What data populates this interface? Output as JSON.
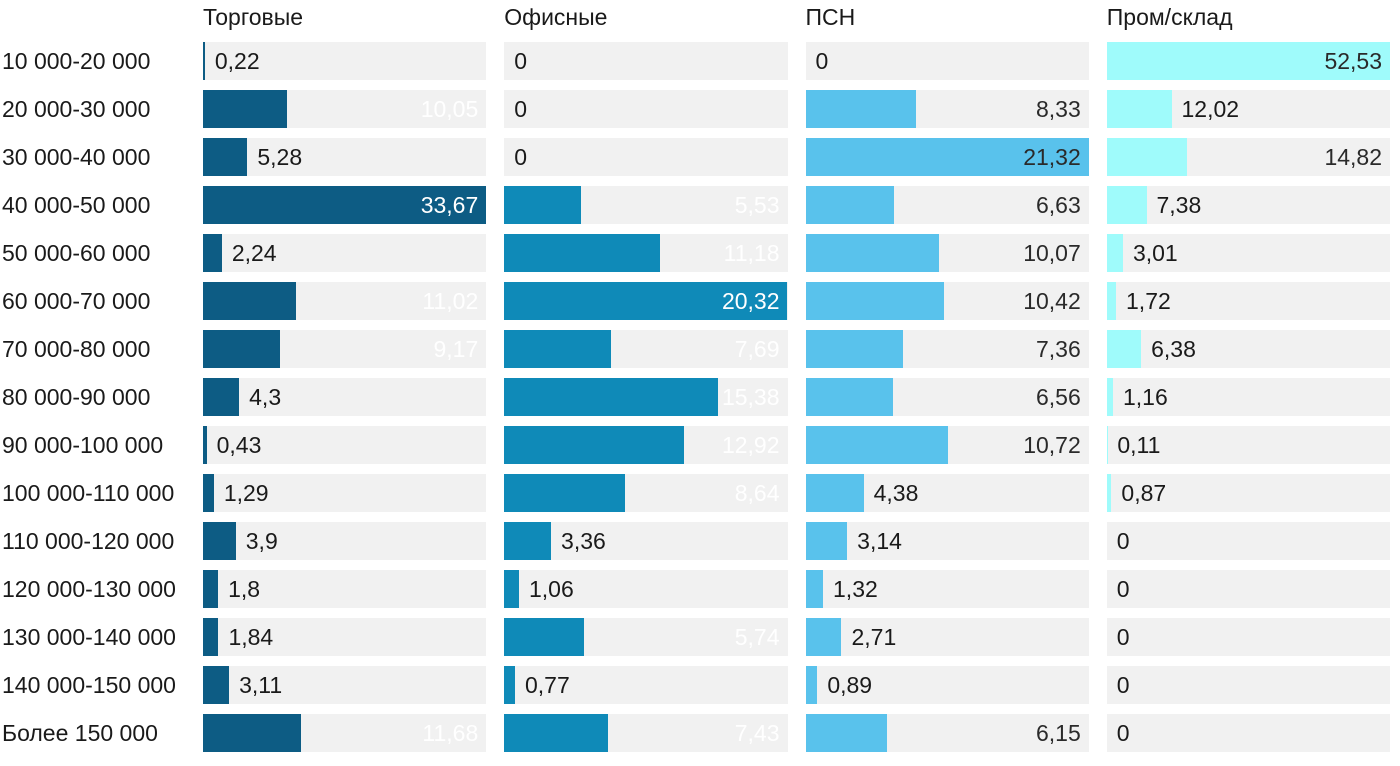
{
  "chart_data": {
    "type": "bar",
    "orientation": "horizontal",
    "title": "",
    "xlabel": "",
    "ylabel": "",
    "categories": [
      "10 000-20 000",
      "20 000-30 000",
      "30 000-40 000",
      "40 000-50 000",
      "50 000-60 000",
      "60 000-70 000",
      "70 000-80 000",
      "80 000-90 000",
      "90 000-100 000",
      "100 000-110 000",
      "110 000-120 000",
      "120 000-130 000",
      "130 000-140 000",
      "140 000-150 000",
      "Более 150 000"
    ],
    "series": [
      {
        "name": "Торговые",
        "color": "#0d5c84",
        "inside_label_color": "#ffffff",
        "values": [
          0.22,
          10.05,
          5.28,
          33.67,
          2.24,
          11.02,
          9.17,
          4.3,
          0.43,
          1.29,
          3.9,
          1.8,
          1.84,
          3.11,
          11.68
        ],
        "labels": [
          "0,22",
          "10,05",
          "5,28",
          "33,67",
          "2,24",
          "11,02",
          "9,17",
          "4,3",
          "0,43",
          "1,29",
          "3,9",
          "1,8",
          "1,84",
          "3,11",
          "11,68"
        ]
      },
      {
        "name": "Офисные",
        "color": "#0f8ab8",
        "inside_label_color": "#ffffff",
        "values": [
          0,
          0,
          0,
          5.53,
          11.18,
          20.32,
          7.69,
          15.38,
          12.92,
          8.64,
          3.36,
          1.06,
          5.74,
          0.77,
          7.43
        ],
        "labels": [
          "0",
          "0",
          "0",
          "5,53",
          "11,18",
          "20,32",
          "7,69",
          "15,38",
          "12,92",
          "8,64",
          "3,36",
          "1,06",
          "5,74",
          "0,77",
          "7,43"
        ]
      },
      {
        "name": "ПСН",
        "color": "#59c2ec",
        "inside_label_color": "#2a2a2a",
        "values": [
          0,
          8.33,
          21.32,
          6.63,
          10.07,
          10.42,
          7.36,
          6.56,
          10.72,
          4.38,
          3.14,
          1.32,
          2.71,
          0.89,
          6.15
        ],
        "labels": [
          "0",
          "8,33",
          "21,32",
          "6,63",
          "10,07",
          "10,42",
          "7,36",
          "6,56",
          "10,72",
          "4,38",
          "3,14",
          "1,32",
          "2,71",
          "0,89",
          "6,15"
        ]
      },
      {
        "name": "Пром/склад",
        "color": "#9ffbfb",
        "inside_label_color": "#2a2a2a",
        "values": [
          52.53,
          12.02,
          14.82,
          7.38,
          3.01,
          1.72,
          6.38,
          1.16,
          0.11,
          0.87,
          0,
          0,
          0,
          0,
          0
        ],
        "labels": [
          "52,53",
          "12,02",
          "14,82",
          "7,38",
          "3,01",
          "1,72",
          "6,38",
          "1,16",
          "0,11",
          "0,87",
          "0",
          "0",
          "0",
          "0",
          "0"
        ]
      }
    ],
    "layout": {
      "track_color": "#f1f1f1",
      "outside_label_color": "#1a1a1a",
      "scaling": "each column scaled independently to its own max value",
      "legend_position": "column-headers",
      "grid": false
    }
  }
}
